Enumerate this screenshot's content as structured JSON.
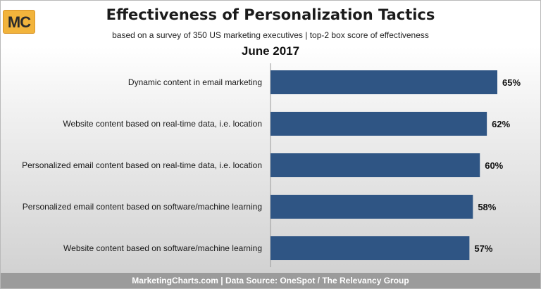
{
  "logo": {
    "text": "MC",
    "color": "#f2b43c"
  },
  "colors": {
    "bar": "#2f5584",
    "footer_bg": "#9b9b9b"
  },
  "footer": {
    "text": "MarketingCharts.com | Data Source: OneSpot / The Relevancy Group"
  },
  "chart_data": {
    "type": "bar",
    "orientation": "horizontal",
    "title": "Effectiveness of Personalization Tactics",
    "subtitle": "based on a survey of 350 US marketing executives | top-2 box score of effectiveness",
    "period": "June 2017",
    "categories": [
      "Dynamic content in email marketing",
      "Website content based on real-time data, i.e. location",
      "Personalized email content based on real-time data, i.e. location",
      "Personalized email content based on software/machine learning",
      "Website content based on software/machine learning"
    ],
    "values": [
      65,
      62,
      60,
      58,
      57
    ],
    "value_labels": [
      "65%",
      "62%",
      "60%",
      "58%",
      "57%"
    ],
    "xlim": [
      0,
      65
    ],
    "grid": false,
    "legend": "none"
  }
}
